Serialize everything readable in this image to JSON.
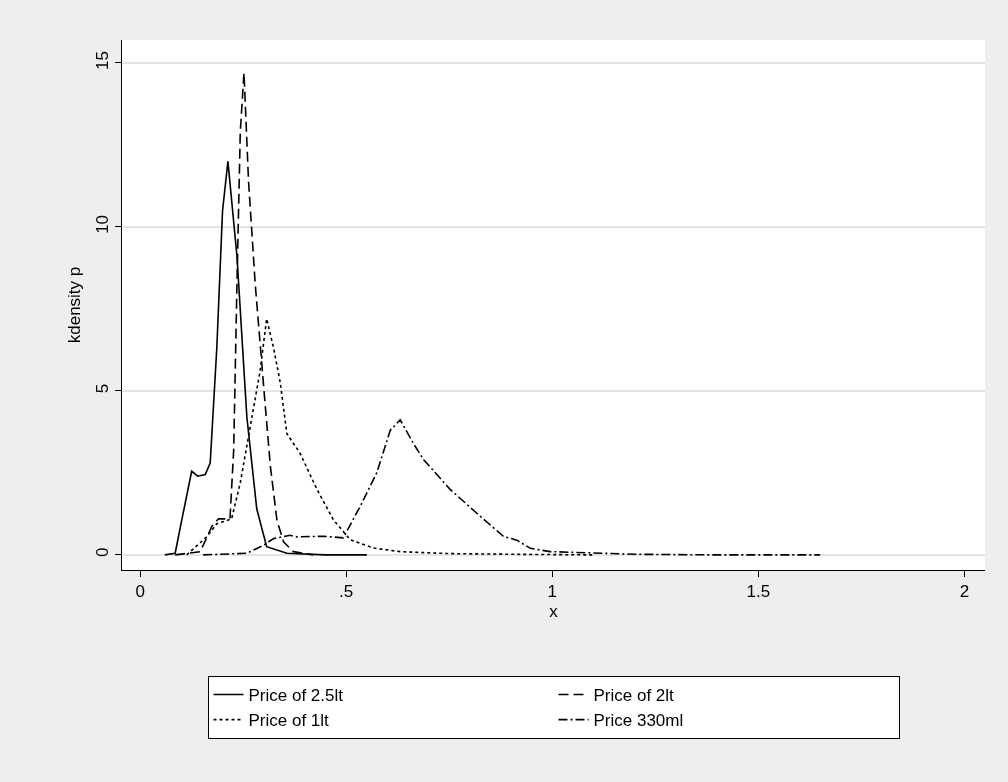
{
  "chart_data": {
    "type": "line",
    "xlabel": "x",
    "ylabel": "kdensity p",
    "xlim": [
      -0.044,
      2.05
    ],
    "ylim": [
      -0.46,
      15.7
    ],
    "xticks": [
      0,
      {
        "value": 0.5,
        "label": ".5"
      },
      1,
      1.5,
      2
    ],
    "yticks": [
      0,
      5,
      10,
      15
    ],
    "grid": "y",
    "legend": "bottom",
    "marker": "none",
    "series": [
      {
        "name": "Price of 2.5lt",
        "color": "#000000",
        "line_style": "solid",
        "x": [
          0.06,
          0.085,
          0.1,
          0.125,
          0.14,
          0.158,
          0.17,
          0.186,
          0.2,
          0.213,
          0.235,
          0.259,
          0.283,
          0.307,
          0.356,
          0.45,
          0.55
        ],
        "values": [
          0,
          0.05,
          1.0,
          2.55,
          2.4,
          2.45,
          2.8,
          6.3,
          10.5,
          12.0,
          9.1,
          4.2,
          1.4,
          0.25,
          0.05,
          0,
          0
        ]
      },
      {
        "name": "Price of 2lt",
        "color": "#000000",
        "line_style": "dashed",
        "x": [
          0.085,
          0.146,
          0.174,
          0.19,
          0.218,
          0.227,
          0.235,
          0.243,
          0.252,
          0.263,
          0.279,
          0.299,
          0.316,
          0.332,
          0.348,
          0.372,
          0.42
        ],
        "values": [
          0,
          0.1,
          0.87,
          1.1,
          1.1,
          3.2,
          8.3,
          12.9,
          14.7,
          11.4,
          8.3,
          5.25,
          2.7,
          1.05,
          0.4,
          0.1,
          0
        ]
      },
      {
        "name": "Price of 1lt",
        "color": "#000000",
        "line_style": "dotted",
        "x": [
          0.113,
          0.162,
          0.186,
          0.222,
          0.243,
          0.267,
          0.291,
          0.307,
          0.324,
          0.34,
          0.356,
          0.388,
          0.429,
          0.469,
          0.51,
          0.566,
          0.631,
          0.75,
          0.9,
          1.1
        ],
        "values": [
          0,
          0.56,
          0.95,
          1.1,
          2.2,
          3.9,
          5.6,
          7.2,
          6.3,
          5.25,
          3.7,
          3.1,
          2.0,
          1.07,
          0.46,
          0.21,
          0.1,
          0.04,
          0.02,
          0
        ]
      },
      {
        "name": "Price 330ml",
        "color": "#000000",
        "line_style": "dashdot",
        "x": [
          0.153,
          0.259,
          0.3,
          0.324,
          0.364,
          0.38,
          0.445,
          0.493,
          0.534,
          0.574,
          0.607,
          0.631,
          0.663,
          0.688,
          0.752,
          0.817,
          0.882,
          0.914,
          0.947,
          0.995,
          1.2,
          1.4,
          1.65
        ],
        "values": [
          0,
          0.05,
          0.3,
          0.5,
          0.6,
          0.55,
          0.57,
          0.52,
          1.48,
          2.5,
          3.8,
          4.12,
          3.4,
          2.9,
          2.0,
          1.27,
          0.56,
          0.45,
          0.2,
          0.1,
          0.02,
          0,
          0
        ]
      }
    ]
  }
}
